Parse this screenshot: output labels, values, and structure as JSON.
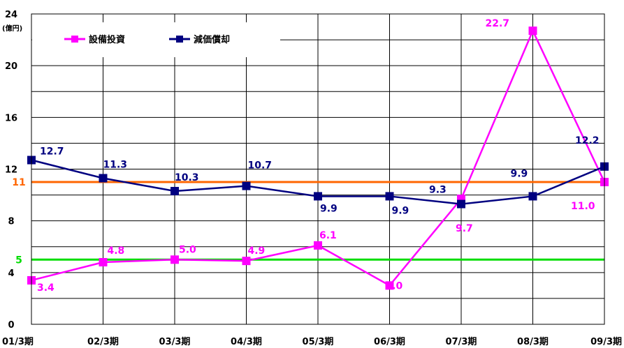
{
  "chart_data": {
    "type": "line",
    "categories": [
      "01/3期",
      "02/3期",
      "03/3期",
      "04/3期",
      "05/3期",
      "06/3期",
      "07/3期",
      "08/3期",
      "09/3期"
    ],
    "ylim": [
      0,
      24
    ],
    "yticks": [
      "0",
      "4",
      "8",
      "12",
      "16",
      "20",
      "24"
    ],
    "yunit": "(億円)",
    "grid": true,
    "legend_position": "top-left",
    "series": [
      {
        "name": "設備投資",
        "color": "#ff00ff",
        "values": [
          3.4,
          4.8,
          5.0,
          4.9,
          6.1,
          3.0,
          9.7,
          22.7,
          11.0
        ],
        "labels": [
          "3.4",
          "4.8",
          "5.0",
          "4.9",
          "6.1",
          "3.0",
          "9.7",
          "22.7",
          "11.0"
        ]
      },
      {
        "name": "減価償却",
        "color": "#000080",
        "values": [
          12.7,
          11.3,
          10.3,
          10.7,
          9.9,
          9.9,
          9.3,
          9.9,
          12.2
        ],
        "labels": [
          "12.7",
          "11.3",
          "10.3",
          "10.7",
          "9.9",
          "9.9",
          "9.3",
          "9.9",
          "12.2"
        ]
      }
    ],
    "reference_lines": [
      {
        "value": 11,
        "label": "11",
        "color": "#ff6600"
      },
      {
        "value": 5,
        "label": "5",
        "color": "#00dd00"
      }
    ]
  }
}
